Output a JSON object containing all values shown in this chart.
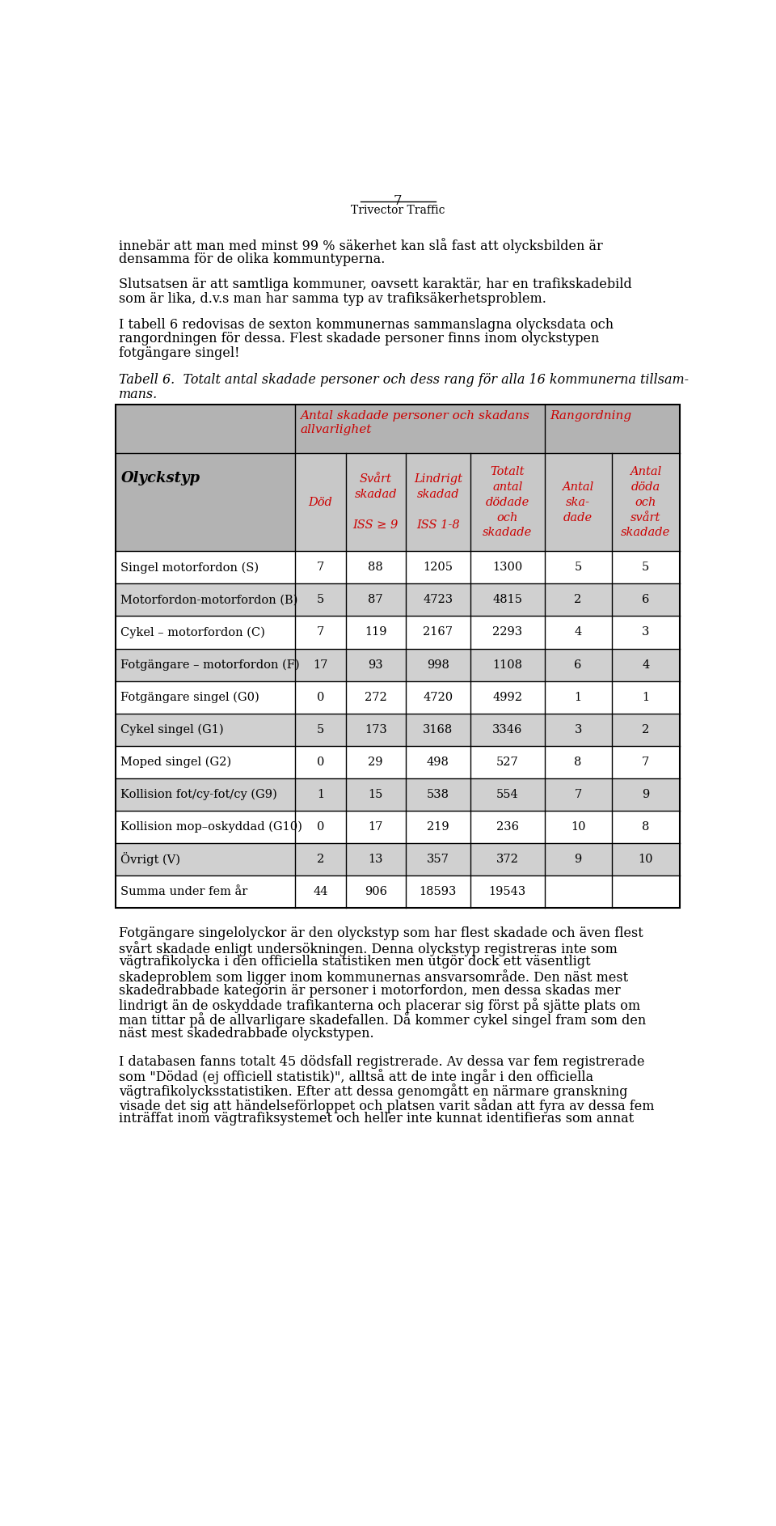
{
  "page_number": "7",
  "page_subtitle": "Trivector Traffic",
  "para1_lines": [
    "innebär att man med minst 99 % säkerhet kan slå fast att olycksbilden är",
    "densamma för de olika kommuntyperna."
  ],
  "para2_lines": [
    "Slutsatsen är att samtliga kommuner, oavsett karaktär, har en trafikskadebild",
    "som är lika, d.v.s man har samma typ av trafiksäkerhetsproblem."
  ],
  "para3_lines": [
    "I tabell 6 redovisas de sexton kommunernas sammanslagna olycksdata och",
    "rangordningen för dessa. Flest skadade personer finns inom olyckstypen",
    "fotgängare singel!"
  ],
  "caption_line1": "Tabell 6.  Totalt antal skadade personer och dess rang för alla 16 kommunerna tillsam-",
  "caption_line2": "mans.",
  "col0_header": "Olyckstyp",
  "group1_header_line1": "Antal skadade personer och skadans",
  "group1_header_line2": "allvarlighet",
  "group2_header": "Rangordning",
  "sub_headers": [
    [
      "Död"
    ],
    [
      "Svårt",
      "skadad",
      "",
      "ISS ≥ 9"
    ],
    [
      "Lindrigt",
      "skadad",
      "",
      "ISS 1-8"
    ],
    [
      "Totalt",
      "antal",
      "dödade",
      "och",
      "skadade"
    ],
    [
      "Antal",
      "ska-",
      "dade"
    ],
    [
      "Antal",
      "döda",
      "och",
      "svårt",
      "skadade"
    ]
  ],
  "rows": [
    [
      "Singel motorfordon (S)",
      "7",
      "88",
      "1205",
      "1300",
      "5",
      "5"
    ],
    [
      "Motorfordon-motorfordon (B)",
      "5",
      "87",
      "4723",
      "4815",
      "2",
      "6"
    ],
    [
      "Cykel – motorfordon (C)",
      "7",
      "119",
      "2167",
      "2293",
      "4",
      "3"
    ],
    [
      "Fotgängare – motorfordon (F)",
      "17",
      "93",
      "998",
      "1108",
      "6",
      "4"
    ],
    [
      "Fotgängare singel (G0)",
      "0",
      "272",
      "4720",
      "4992",
      "1",
      "1"
    ],
    [
      "Cykel singel (G1)",
      "5",
      "173",
      "3168",
      "3346",
      "3",
      "2"
    ],
    [
      "Moped singel (G2)",
      "0",
      "29",
      "498",
      "527",
      "8",
      "7"
    ],
    [
      "Kollision fot/cy-fot/cy (G9)",
      "1",
      "15",
      "538",
      "554",
      "7",
      "9"
    ],
    [
      "Kollision mop–oskyddad (G10)",
      "0",
      "17",
      "219",
      "236",
      "10",
      "8"
    ],
    [
      "Övrigt (V)",
      "2",
      "13",
      "357",
      "372",
      "9",
      "10"
    ],
    [
      "Summa under fem år",
      "44",
      "906",
      "18593",
      "19543",
      "",
      ""
    ]
  ],
  "footer1_lines": [
    "Fotgängare singelolyckor är den olyckstyp som har flest skadade och även flest",
    "svårt skadade enligt undersökningen. Denna olyckstyp registreras inte som",
    "vägtrafikolycka i den officiella statistiken men utgör dock ett väsentligt",
    "skadeproblem som ligger inom kommunernas ansvarsområde. Den näst mest",
    "skadedrabbade kategorin är personer i motorfordon, men dessa skadas mer",
    "lindrigt än de oskyddade trafikanterna och placerar sig först på sjätte plats om",
    "man tittar på de allvarligare skadefallen. Då kommer cykel singel fram som den",
    "näst mest skadedrabbade olyckstypen."
  ],
  "footer2_lines": [
    "I databasen fanns totalt 45 dödsfall registrerade. Av dessa var fem registrerade",
    "som \"Dödad (ej officiell statistik)\", alltså att de inte ingår i den officiella",
    "vägtrafikolycksstatistiken. Efter att dessa genomgått en närmare granskning",
    "visade det sig att händelseförloppet och platsen varit sådan att fyra av dessa fem",
    "inträffat inom vägtrafiksystemet och heller inte kunnat identifieras som annat"
  ],
  "bg_header": "#b3b3b3",
  "bg_subheader": "#c8c8c8",
  "bg_row_white": "#ffffff",
  "bg_row_gray": "#d0d0d0",
  "red": "#cc0000",
  "black": "#000000",
  "white": "#ffffff"
}
